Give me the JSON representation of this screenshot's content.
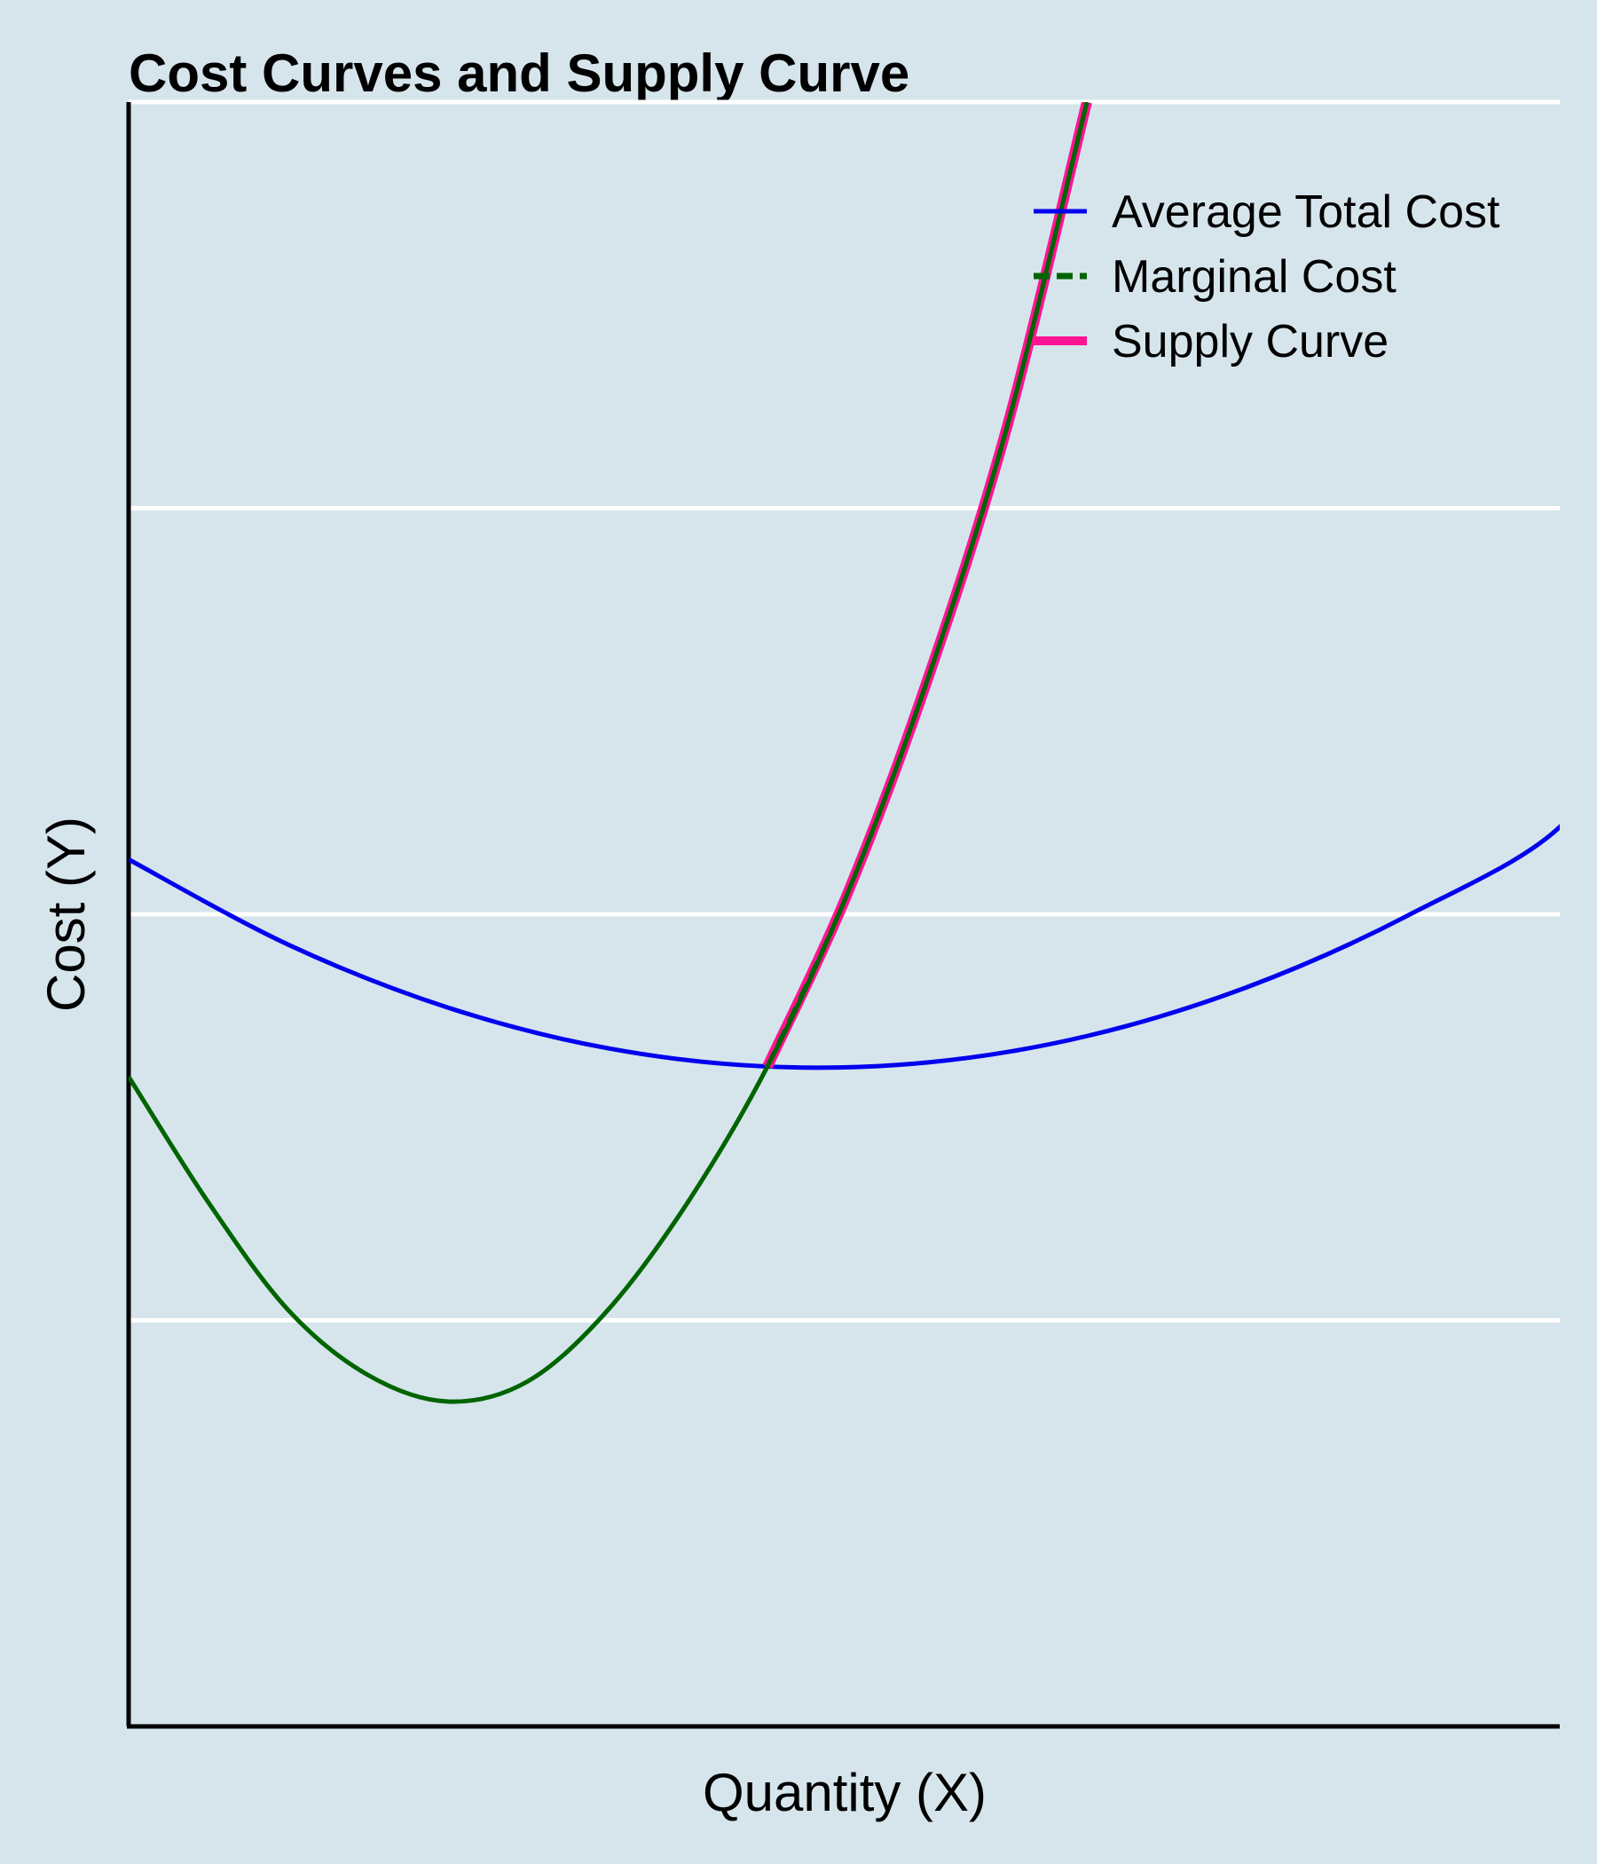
{
  "chart_data": {
    "type": "line",
    "title": "Cost Curves and Supply Curve",
    "xlabel": "Quantity (X)",
    "ylabel": "Cost (Y)",
    "xlim": [
      0,
      10
    ],
    "ylim": [
      0,
      80
    ],
    "grid": true,
    "grid_axis": "y",
    "y_gridlines": [
      20,
      40,
      60,
      80
    ],
    "tick_labels_shown": false,
    "legend_position": "top-right",
    "series": [
      {
        "name": "Average Total Cost",
        "color": "#0000ee",
        "style": "solid",
        "x": [
          0,
          1,
          2,
          3,
          4,
          5,
          6,
          7,
          8,
          9,
          9.33
        ],
        "y": [
          42.7,
          38.5,
          35.4,
          33.4,
          32.5,
          32.7,
          34.0,
          36.4,
          39.9,
          44.6,
          51.0
        ]
      },
      {
        "name": "Marginal Cost",
        "color": "#006400",
        "style": "dashed",
        "x": [
          0,
          0.5,
          1,
          1.5,
          2,
          2.5,
          3,
          3.5,
          4,
          4.5,
          5,
          5.5,
          6
        ],
        "y": [
          32.0,
          25.8,
          20.5,
          17.3,
          16.0,
          17.0,
          20.5,
          25.8,
          32.5,
          41.0,
          51.5,
          64.0,
          80.0
        ]
      },
      {
        "name": "Supply Curve",
        "color": "#ff1493",
        "style": "solid",
        "x": [
          4,
          4.5,
          5,
          5.5,
          6
        ],
        "y": [
          32.5,
          41.0,
          51.5,
          64.0,
          80.0
        ]
      }
    ]
  }
}
